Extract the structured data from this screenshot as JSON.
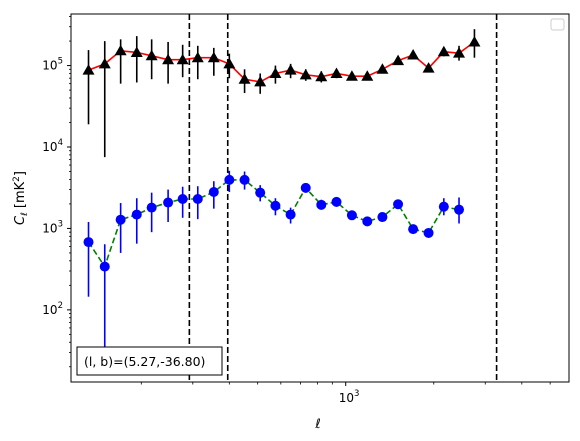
{
  "chart_data": {
    "type": "scatter",
    "title": "",
    "xlabel": "ℓ",
    "ylabel_main": "C",
    "ylabel_sub": "ℓ",
    "ylabel_unit_pre": "[mK",
    "ylabel_unit_exp": "2",
    "ylabel_unit_post": "]",
    "xscale": "log",
    "yscale": "log",
    "xlim": [
      115,
      5800
    ],
    "ylim": [
      13,
      430000
    ],
    "x_tick_labels": [
      {
        "base": "10",
        "exp": "3",
        "value": 1000
      }
    ],
    "y_tick_labels": [
      {
        "base": "10",
        "exp": "2",
        "value": 100
      },
      {
        "base": "10",
        "exp": "3",
        "value": 1000
      },
      {
        "base": "10",
        "exp": "4",
        "value": 10000
      },
      {
        "base": "10",
        "exp": "5",
        "value": 100000
      }
    ],
    "legend": {
      "placement": "top-right",
      "entries": []
    },
    "annotation": {
      "text": "(l, b)=(5.27,-36.80)",
      "placement": "bottom-left"
    },
    "vlines": [
      292,
      395,
      3280
    ],
    "series": [
      {
        "color": "#000000",
        "marker": "triangle",
        "line_color": "#ff0000",
        "line_style": "solid",
        "points": [
          {
            "x": 132,
            "y": 88000,
            "err_low": 19000,
            "err_high": 155000
          },
          {
            "x": 150,
            "y": 105000,
            "err_low": 7500,
            "err_high": 200000
          },
          {
            "x": 170,
            "y": 152000,
            "err_low": 60000,
            "err_high": 210000
          },
          {
            "x": 193,
            "y": 145000,
            "err_low": 62000,
            "err_high": 230000
          },
          {
            "x": 217,
            "y": 132000,
            "err_low": 68000,
            "err_high": 210000
          },
          {
            "x": 247,
            "y": 118000,
            "err_low": 60000,
            "err_high": 195000
          },
          {
            "x": 277,
            "y": 118000,
            "err_low": 72000,
            "err_high": 180000
          },
          {
            "x": 312,
            "y": 125000,
            "err_low": 68000,
            "err_high": 175000
          },
          {
            "x": 354,
            "y": 125000,
            "err_low": 75000,
            "err_high": 165000
          },
          {
            "x": 400,
            "y": 105000,
            "err_low": 70000,
            "err_high": 140000
          },
          {
            "x": 451,
            "y": 68000,
            "err_low": 46000,
            "err_high": 90000
          },
          {
            "x": 510,
            "y": 63000,
            "err_low": 45000,
            "err_high": 80000
          },
          {
            "x": 575,
            "y": 80000,
            "err_low": 60000,
            "err_high": 100000
          },
          {
            "x": 648,
            "y": 88000,
            "err_low": 70000,
            "err_high": 105000
          },
          {
            "x": 730,
            "y": 77000,
            "err_low": 65000,
            "err_high": 90000
          },
          {
            "x": 825,
            "y": 73000,
            "err_low": 62000,
            "err_high": 85000
          },
          {
            "x": 930,
            "y": 80000,
            "err_low": 70000,
            "err_high": 90000
          },
          {
            "x": 1050,
            "y": 74000,
            "err_low": 66000,
            "err_high": 82000
          },
          {
            "x": 1185,
            "y": 74000,
            "err_low": 67000,
            "err_high": 82000
          },
          {
            "x": 1335,
            "y": 90000,
            "err_low": 82000,
            "err_high": 98000
          },
          {
            "x": 1510,
            "y": 115000,
            "err_low": 105000,
            "err_high": 125000
          },
          {
            "x": 1700,
            "y": 135000,
            "err_low": 123000,
            "err_high": 148000
          },
          {
            "x": 1920,
            "y": 93000,
            "err_low": 84000,
            "err_high": 102000
          },
          {
            "x": 2165,
            "y": 148000,
            "err_low": 130000,
            "err_high": 165000
          },
          {
            "x": 2440,
            "y": 142000,
            "err_low": 115000,
            "err_high": 175000
          },
          {
            "x": 2755,
            "y": 195000,
            "err_low": 125000,
            "err_high": 280000
          }
        ]
      },
      {
        "color": "#0000ff",
        "marker": "circle",
        "line_color": "#008000",
        "line_style": "dashed",
        "points": [
          {
            "x": 132,
            "y": 680,
            "err_low": 145,
            "err_high": 1200
          },
          {
            "x": 150,
            "y": 340,
            "err_low": 20,
            "err_high": 640
          },
          {
            "x": 170,
            "y": 1280,
            "err_low": 500,
            "err_high": 2050
          },
          {
            "x": 193,
            "y": 1480,
            "err_low": 650,
            "err_high": 2350
          },
          {
            "x": 217,
            "y": 1800,
            "err_low": 900,
            "err_high": 2750
          },
          {
            "x": 247,
            "y": 2080,
            "err_low": 1200,
            "err_high": 3000
          },
          {
            "x": 277,
            "y": 2300,
            "err_low": 1350,
            "err_high": 3250
          },
          {
            "x": 312,
            "y": 2300,
            "err_low": 1300,
            "err_high": 3300
          },
          {
            "x": 354,
            "y": 2800,
            "err_low": 1750,
            "err_high": 3800
          },
          {
            "x": 400,
            "y": 3950,
            "err_low": 2800,
            "err_high": 5100
          },
          {
            "x": 451,
            "y": 3950,
            "err_low": 3000,
            "err_high": 5000
          },
          {
            "x": 510,
            "y": 2750,
            "err_low": 2150,
            "err_high": 3400
          },
          {
            "x": 575,
            "y": 1900,
            "err_low": 1450,
            "err_high": 2350
          },
          {
            "x": 648,
            "y": 1480,
            "err_low": 1150,
            "err_high": 1800
          },
          {
            "x": 730,
            "y": 3150,
            "err_low": 2750,
            "err_high": 3600
          },
          {
            "x": 825,
            "y": 1950,
            "err_low": 1700,
            "err_high": 2250
          },
          {
            "x": 930,
            "y": 2120,
            "err_low": 1850,
            "err_high": 2400
          },
          {
            "x": 1050,
            "y": 1450,
            "err_low": 1270,
            "err_high": 1630
          },
          {
            "x": 1185,
            "y": 1220,
            "err_low": 1070,
            "err_high": 1380
          },
          {
            "x": 1335,
            "y": 1380,
            "err_low": 1220,
            "err_high": 1550
          },
          {
            "x": 1510,
            "y": 1980,
            "err_low": 1780,
            "err_high": 2200
          },
          {
            "x": 1700,
            "y": 980,
            "err_low": 880,
            "err_high": 1080
          },
          {
            "x": 1920,
            "y": 880,
            "err_low": 790,
            "err_high": 970
          },
          {
            "x": 2165,
            "y": 1850,
            "err_low": 1450,
            "err_high": 2350
          },
          {
            "x": 2440,
            "y": 1700,
            "err_low": 1150,
            "err_high": 2400
          }
        ]
      }
    ]
  }
}
